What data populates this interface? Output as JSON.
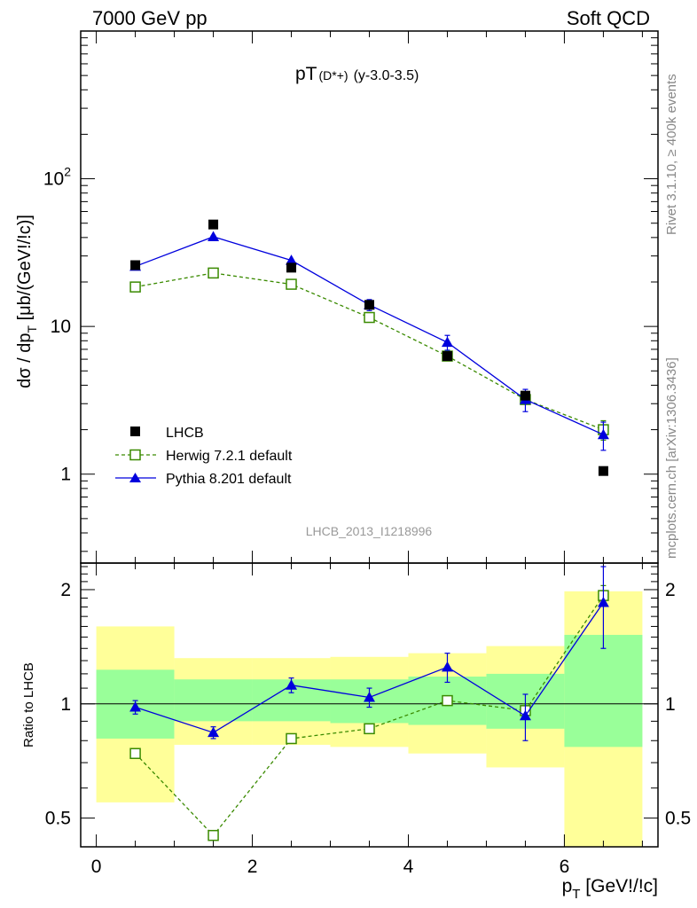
{
  "header": {
    "left": "7000 GeV pp",
    "right": "Soft QCD"
  },
  "plot": {
    "title_main": "pT",
    "title_sub": "(D*+)",
    "title_range": "(y-3.0-3.5)",
    "watermark": "LHCB_2013_I1218996",
    "ylabel_top": "dσ / dp_T [μb/(GeV!/!c)]",
    "ylabel_bottom": "Ratio to LHCB",
    "xlabel": "p_T [GeV!/!c]",
    "side_text_top": "Rivet 3.1.10, ≥ 400k events",
    "side_text_bottom": "mcplots.cern.ch [arXiv:1306.3436]"
  },
  "legend": {
    "lhcb": "LHCB",
    "herwig": "Herwig 7.2.1 default",
    "pythia": "Pythia 8.201 default"
  },
  "colors": {
    "data": "#000000",
    "herwig": "#3a8a00",
    "pythia": "#0000dd",
    "band_inner": "#99ff99",
    "band_outer": "#ffff99"
  },
  "chart_data": [
    {
      "type": "scatter",
      "panel": "main",
      "y_scale": "log",
      "xlim": [
        -0.2,
        7.2
      ],
      "ylim": [
        0.25,
        1000
      ],
      "y_ticks": [
        1,
        10,
        100
      ],
      "y_tick_labels": [
        "1",
        "10",
        "10^2"
      ],
      "x": [
        0.5,
        1.5,
        2.5,
        3.5,
        4.5,
        5.5,
        6.5
      ],
      "series": [
        {
          "name": "LHCB",
          "values": [
            26,
            49,
            25,
            14,
            6.3,
            3.4,
            1.05
          ]
        },
        {
          "name": "Herwig 7.2.1 default",
          "values": [
            18.5,
            23,
            19.3,
            11.5,
            6.3,
            3.2,
            2.0
          ],
          "errors": [
            0,
            0,
            0,
            0,
            0,
            0,
            0.3
          ]
        },
        {
          "name": "Pythia 8.201 default",
          "values": [
            25.5,
            40.5,
            28,
            14,
            7.8,
            3.2,
            1.85
          ],
          "errors": [
            0.3,
            0.5,
            0.3,
            1.2,
            0.9,
            0.55,
            0.4
          ]
        }
      ]
    },
    {
      "type": "scatter",
      "panel": "ratio",
      "ylabel": "Ratio to LHCB",
      "xlabel": "p_T [GeV!/!c]",
      "xlim": [
        -0.2,
        7.2
      ],
      "ylim": [
        0.42,
        2.35
      ],
      "x_ticks": [
        0,
        2,
        4,
        6
      ],
      "y_ticks": [
        0.5,
        1,
        2
      ],
      "y_tick_labels": [
        "0.5",
        "1",
        "2"
      ],
      "bands": {
        "x_edges": [
          0,
          1,
          2,
          3,
          4,
          5,
          6,
          7
        ],
        "inner_low": [
          0.81,
          0.9,
          0.9,
          0.89,
          0.88,
          0.86,
          0.77
        ],
        "inner_high": [
          1.23,
          1.16,
          1.16,
          1.16,
          1.18,
          1.2,
          1.52
        ],
        "outer_low": [
          0.55,
          0.78,
          0.78,
          0.77,
          0.74,
          0.68,
          0.42
        ],
        "outer_high": [
          1.6,
          1.32,
          1.32,
          1.33,
          1.36,
          1.42,
          1.98
        ]
      },
      "x": [
        0.5,
        1.5,
        2.5,
        3.5,
        4.5,
        5.5,
        6.5
      ],
      "series": [
        {
          "name": "Herwig 7.2.1 default",
          "values": [
            0.74,
            0.45,
            0.81,
            0.86,
            1.02,
            0.96,
            1.93
          ],
          "errors": [
            0,
            0,
            0,
            0,
            0.03,
            0.04,
            0.12
          ]
        },
        {
          "name": "Pythia 8.201 default",
          "values": [
            0.98,
            0.84,
            1.12,
            1.04,
            1.25,
            0.93,
            1.85
          ],
          "errors": [
            0.04,
            0.03,
            0.05,
            0.06,
            0.11,
            0.13,
            0.45
          ]
        }
      ]
    }
  ]
}
